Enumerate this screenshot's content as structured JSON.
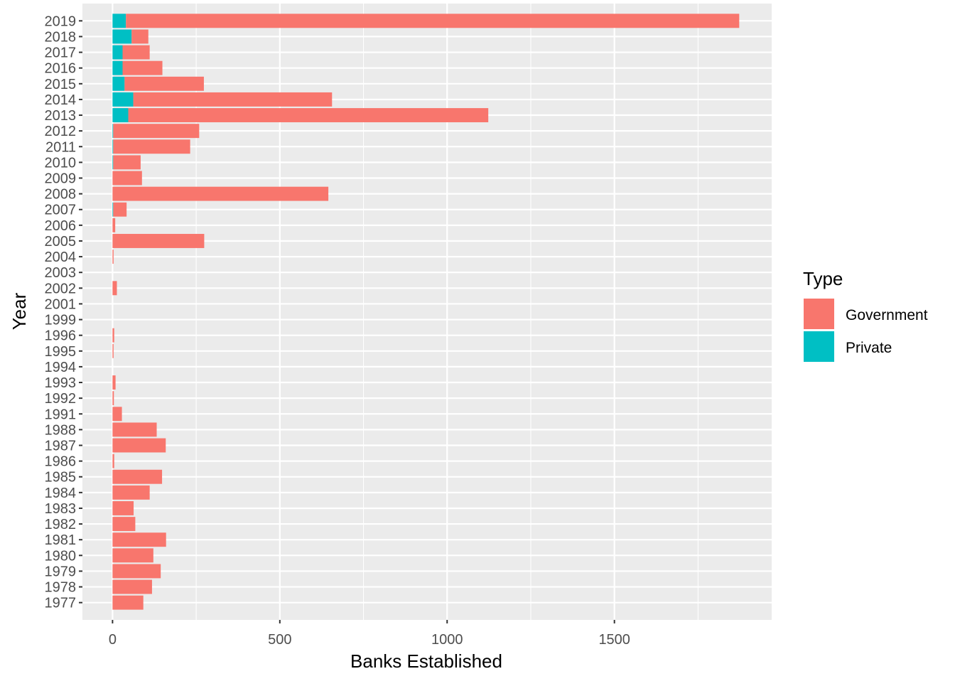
{
  "chart_data": {
    "type": "bar",
    "orientation": "horizontal",
    "stacked": true,
    "xlabel": "Banks Established",
    "ylabel": "Year",
    "xlim": [
      -90,
      1970
    ],
    "x_ticks": [
      0,
      500,
      1000,
      1500
    ],
    "x_tick_labels": [
      "0",
      "500",
      "1000",
      "1500"
    ],
    "grid": true,
    "legend_position": "right",
    "legend_title": "Type",
    "categories": [
      "1977",
      "1978",
      "1979",
      "1980",
      "1981",
      "1982",
      "1983",
      "1984",
      "1985",
      "1986",
      "1987",
      "1988",
      "1991",
      "1992",
      "1993",
      "1994",
      "1995",
      "1996",
      "1999",
      "2001",
      "2002",
      "2003",
      "2004",
      "2005",
      "2006",
      "2007",
      "2008",
      "2009",
      "2010",
      "2011",
      "2012",
      "2013",
      "2014",
      "2015",
      "2016",
      "2017",
      "2018",
      "2019"
    ],
    "series": [
      {
        "name": "Private",
        "color": "#00BFC4",
        "values": [
          0,
          0,
          0,
          0,
          0,
          0,
          0,
          0,
          0,
          0,
          0,
          0,
          0,
          0,
          0,
          0,
          0,
          0,
          0,
          0,
          0,
          0,
          0,
          0,
          0,
          2,
          0,
          0,
          2,
          2,
          2,
          47,
          62,
          36,
          30,
          30,
          57,
          40
        ]
      },
      {
        "name": "Government",
        "color": "#F8766D",
        "values": [
          92,
          118,
          144,
          122,
          160,
          68,
          63,
          111,
          148,
          5,
          159,
          132,
          28,
          4,
          9,
          0,
          3,
          5,
          0,
          0,
          13,
          0,
          3,
          274,
          8,
          40,
          645,
          88,
          82,
          230,
          257,
          1076,
          594,
          237,
          119,
          81,
          50,
          1833
        ]
      }
    ]
  }
}
